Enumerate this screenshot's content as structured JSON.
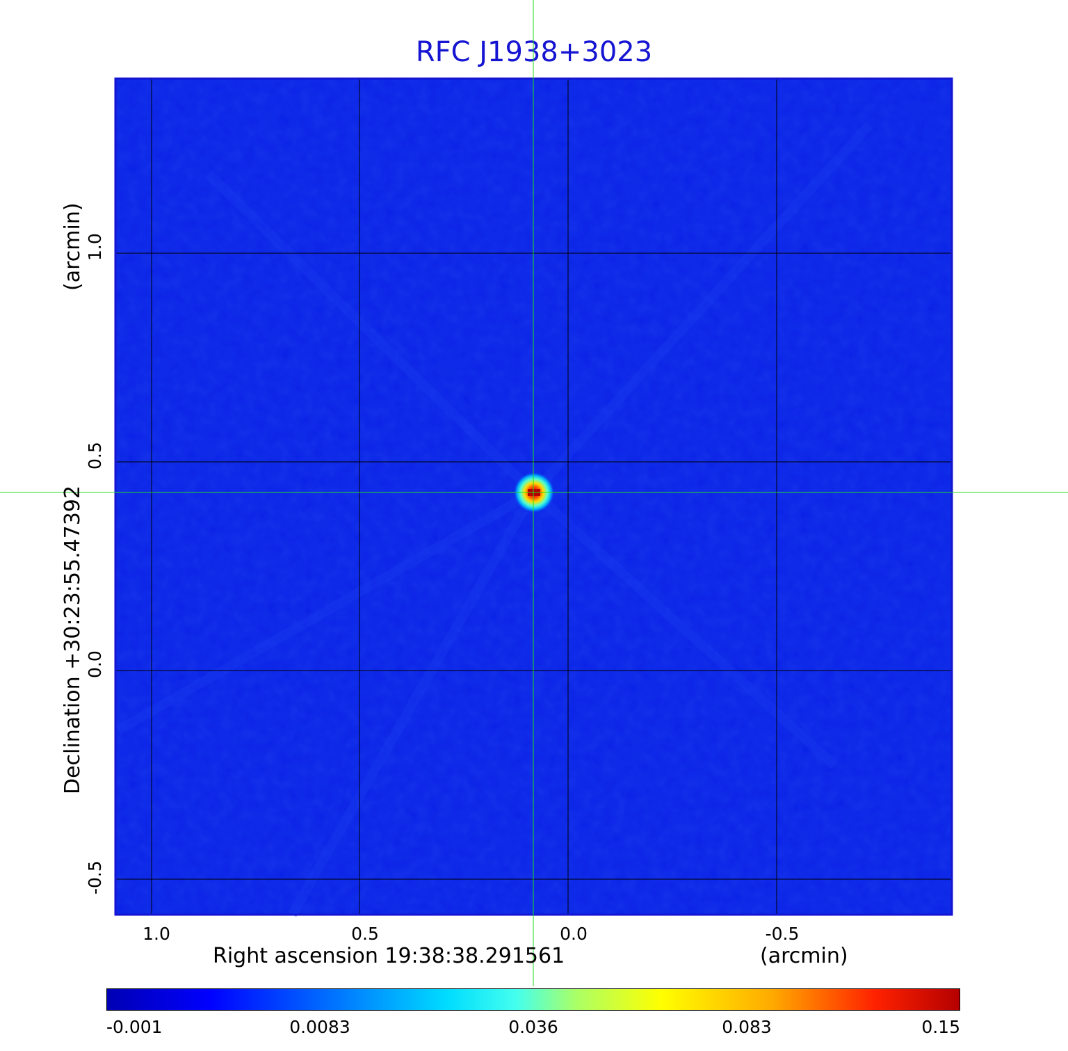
{
  "title": "RFC J1938+3023",
  "axes": {
    "x_label": "Right ascension  19:38:38.291561",
    "x_unit": "(arcmin)",
    "y_label": "Declination  +30:23:55.47392",
    "y_unit": "(arcmin)",
    "x_ticks": [
      "1.0",
      "0.5",
      "0.0",
      "-0.5"
    ],
    "y_ticks": [
      "1.0",
      "0.5",
      "0.0",
      "-0.5"
    ]
  },
  "colorbar": {
    "ticks": [
      "-0.001",
      "0.0083",
      "0.036",
      "0.083",
      "0.15"
    ],
    "colormap": "jet"
  },
  "colors": {
    "background_map": "#0a22e6",
    "title": "#1414d2",
    "crosshair": "#22dd22",
    "grid": "#000000"
  }
}
